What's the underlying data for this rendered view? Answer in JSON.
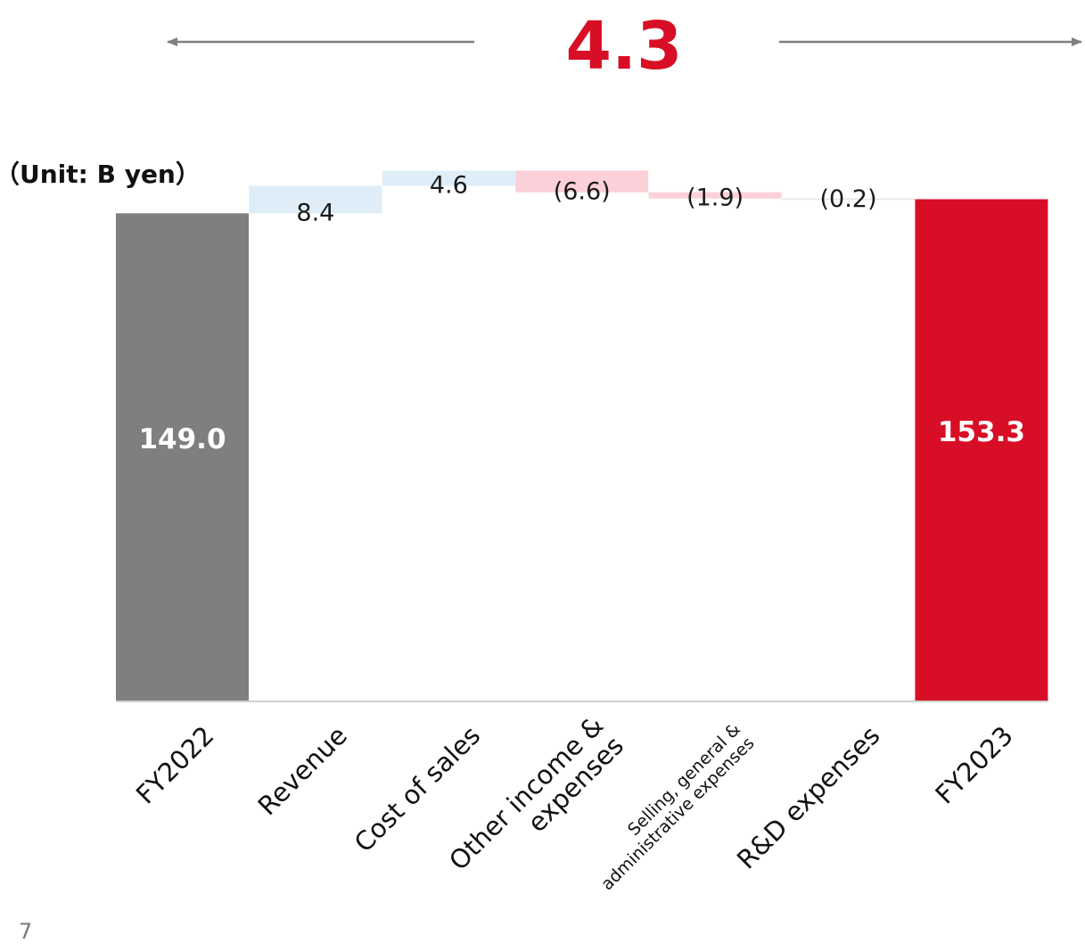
{
  "headline": {
    "value": "4.3",
    "color": "#d80e26"
  },
  "unit_label": "（Unit: B yen）",
  "page_number": "7",
  "colors": {
    "base_total": "#7f7f7f",
    "final_total": "#d80e26",
    "increase": "#deedf7",
    "decrease": "#fbd0d9",
    "arrow": "#7f7f7f",
    "axis": "#d0d0d0"
  },
  "chart_data": {
    "type": "waterfall",
    "title": "",
    "unit": "B yen",
    "categories": [
      "FY2022",
      "Revenue",
      "Cost of sales",
      "Other income & expenses",
      "Selling, general & administrative expenses",
      "R&D expenses",
      "FY2023"
    ],
    "category_lines": [
      [
        "FY2022"
      ],
      [
        "Revenue"
      ],
      [
        "Cost of sales"
      ],
      [
        "Other income &",
        "expenses"
      ],
      [
        "Selling, general &",
        "administrative expenses"
      ],
      [
        "R&D expenses"
      ],
      [
        "FY2023"
      ]
    ],
    "values": [
      149.0,
      8.4,
      4.6,
      -6.6,
      -1.9,
      -0.2,
      153.3
    ],
    "kinds": [
      "total",
      "delta",
      "delta",
      "delta",
      "delta",
      "delta",
      "total"
    ],
    "labels": [
      "149.0",
      "8.4",
      "4.6",
      "(6.6)",
      "(1.9)",
      "(0.2)",
      "153.3"
    ],
    "total_change": 4.3
  }
}
